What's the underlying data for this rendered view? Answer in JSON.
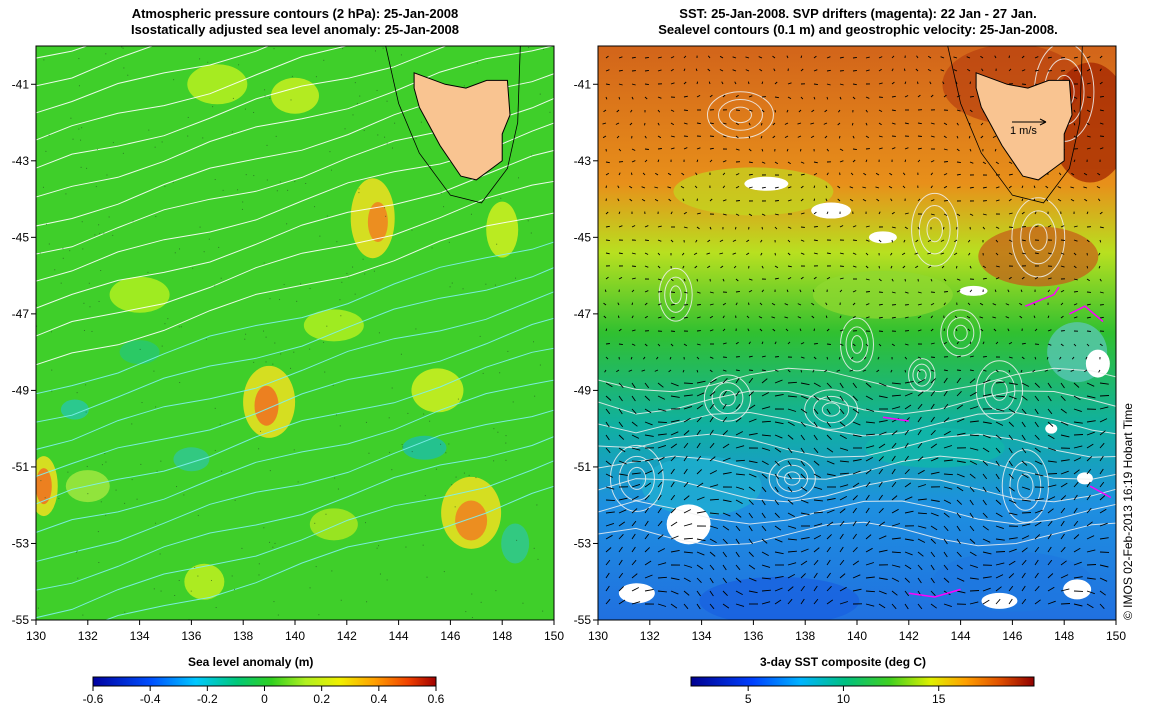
{
  "left_panel": {
    "title_line1": "Atmospheric pressure contours (2 hPa): 25-Jan-2008",
    "title_line2": "Isostatically adjusted sea level anomaly: 25-Jan-2008",
    "colorbar_label": "Sea level anomaly (m)",
    "colorbar_ticks": [
      "-0.6",
      "-0.4",
      "-0.2",
      "0",
      "0.2",
      "0.4",
      "0.6"
    ],
    "colorbar_range": [
      -0.6,
      0.6
    ]
  },
  "right_panel": {
    "title_line1": "SST: 25-Jan-2008. SVP drifters (magenta): 22 Jan - 27 Jan.",
    "title_line2": "Sealevel contours (0.1 m) and geostrophic velocity: 25-Jan-2008.",
    "colorbar_label": "3-day SST composite (deg C)",
    "colorbar_ticks": [
      "5",
      "10",
      "15"
    ],
    "colorbar_range": [
      2,
      20
    ],
    "vector_scale_label": "1 m/s"
  },
  "axes": {
    "lon_ticks": [
      "130",
      "132",
      "134",
      "136",
      "138",
      "140",
      "142",
      "144",
      "146",
      "148",
      "150"
    ],
    "lat_ticks": [
      "-41",
      "-43",
      "-45",
      "-47",
      "-49",
      "-51",
      "-53",
      "-55"
    ],
    "lon_range": [
      130,
      150
    ],
    "lat_range": [
      -55,
      -40
    ]
  },
  "copyright": "© IMOS 02-Feb-2013 16:19 Hobart Time",
  "colors": {
    "land": "#f9c491",
    "ssa_dominant": "#3fcf2a",
    "sst_warm": "#d2641a",
    "sst_cold": "#1e90e0",
    "drifter": "#ff00ff"
  }
}
